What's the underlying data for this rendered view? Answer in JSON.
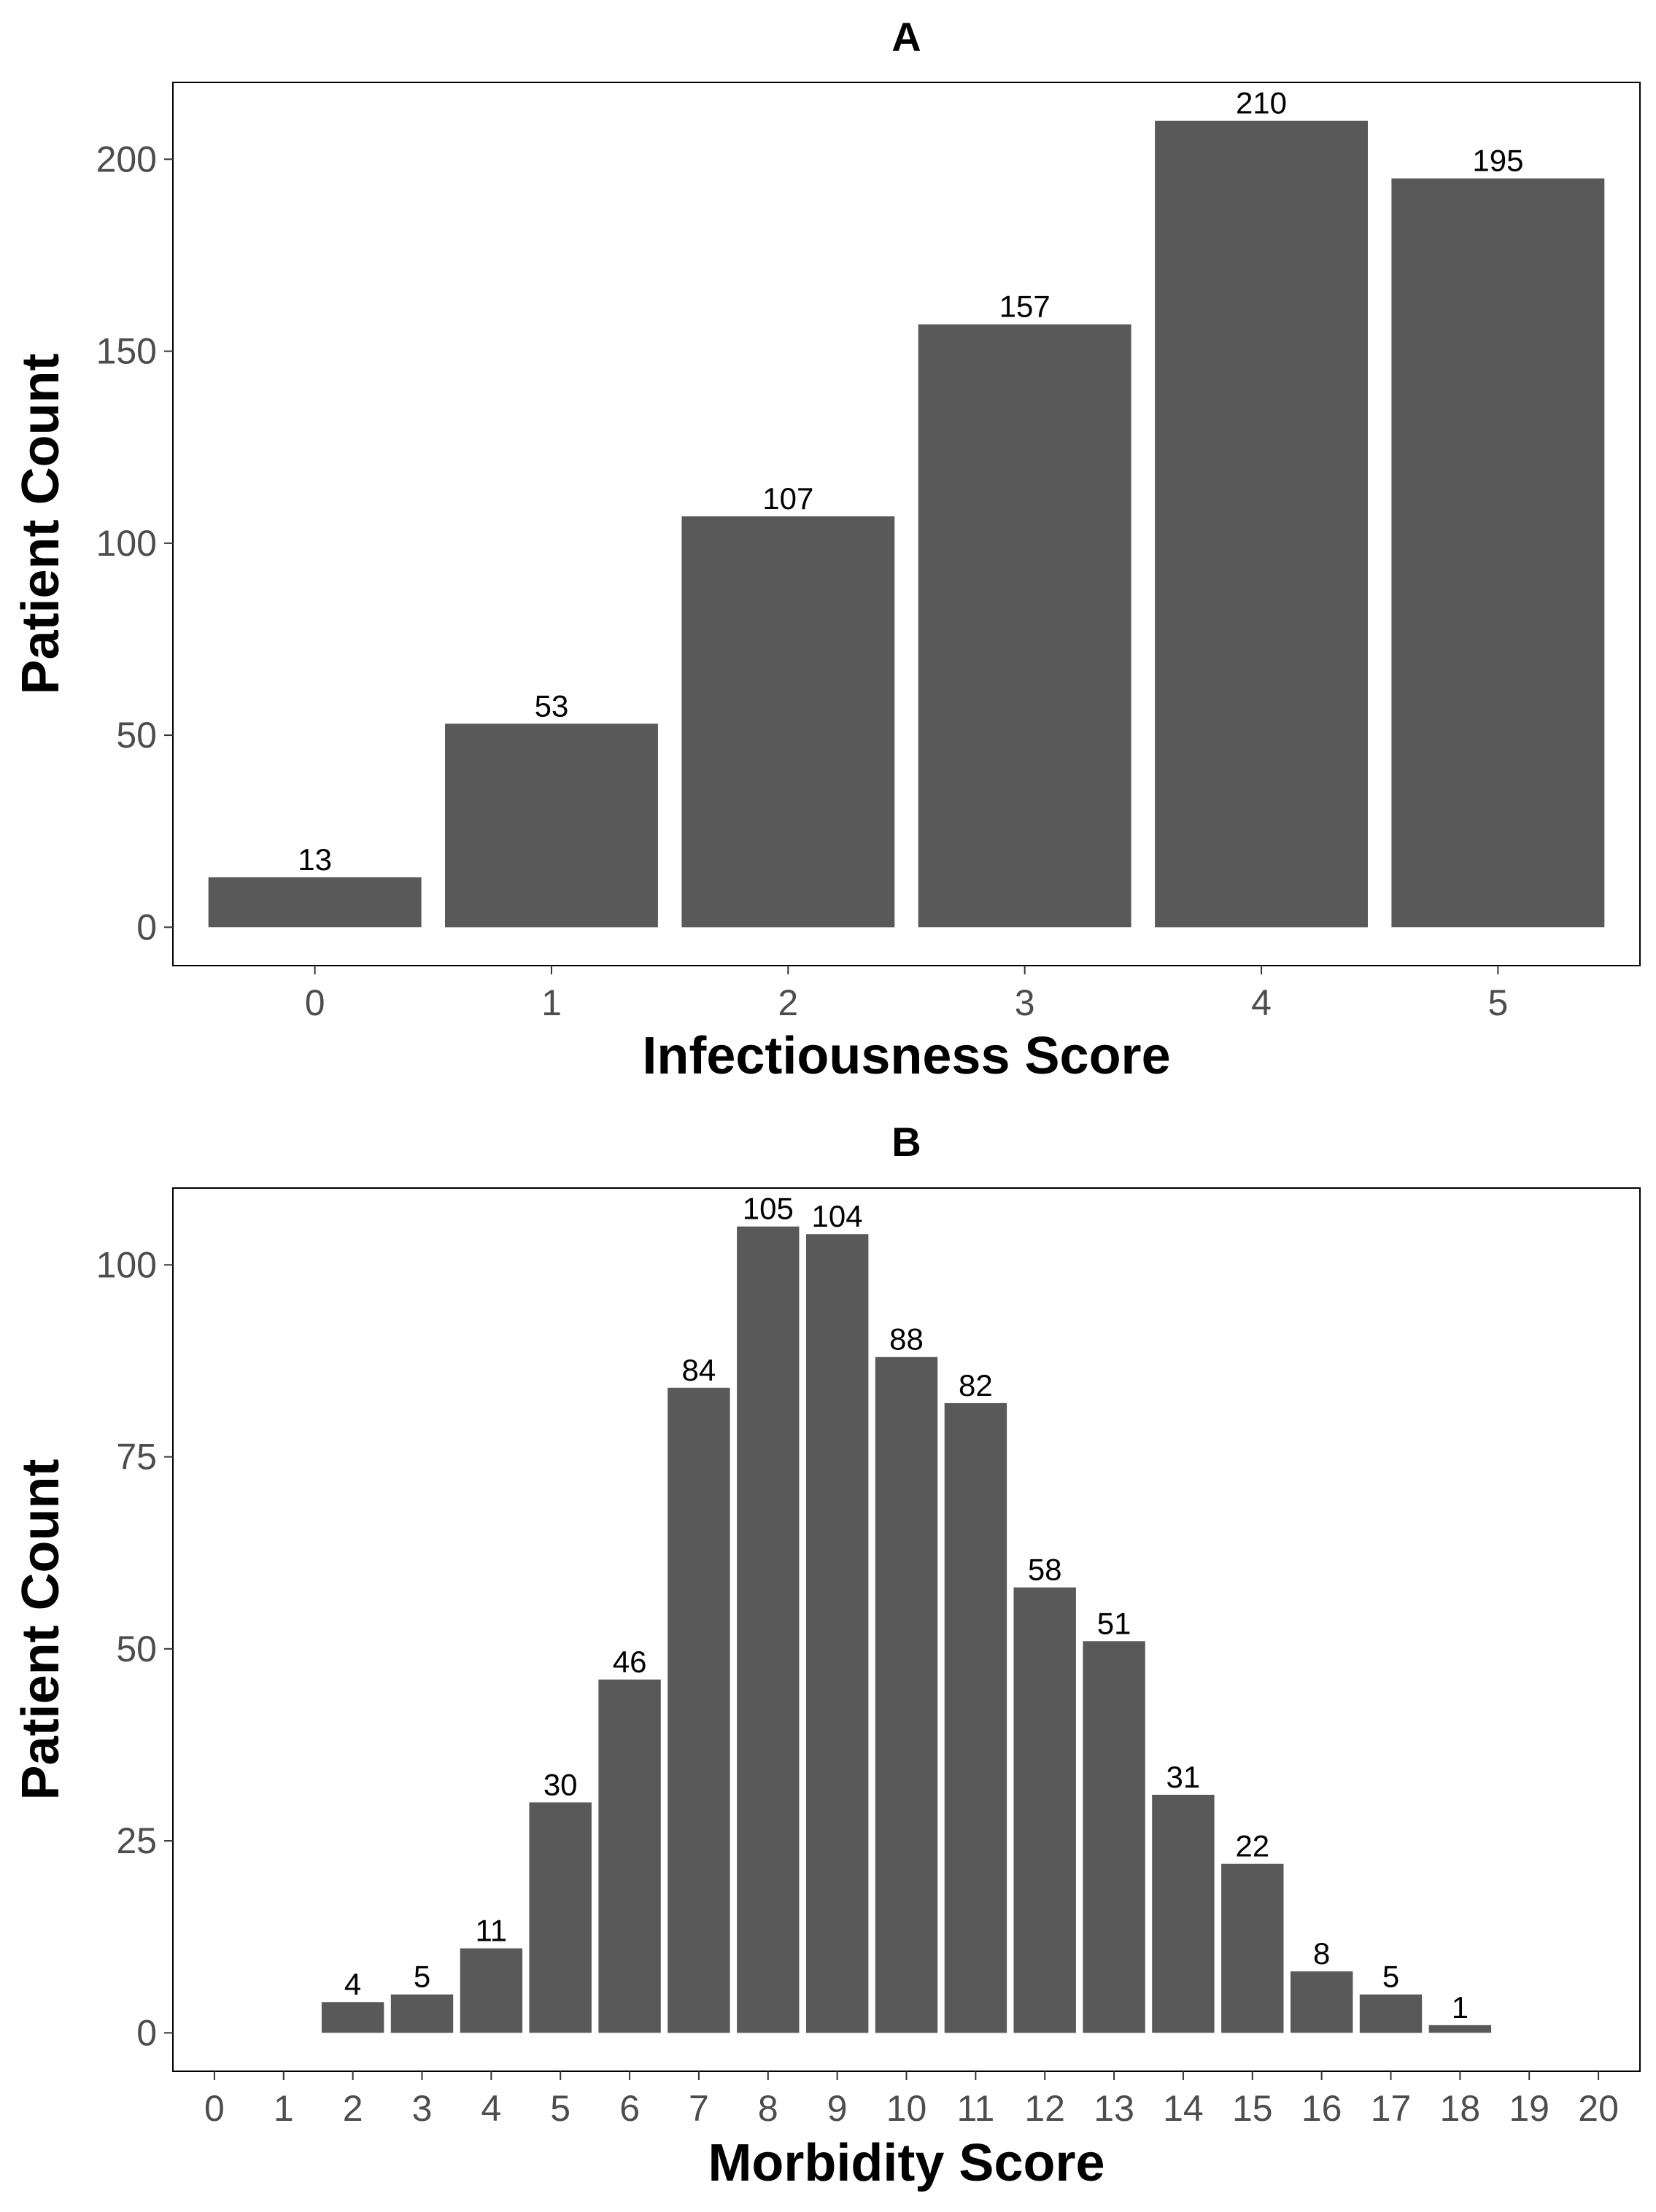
{
  "chart_data": [
    {
      "type": "bar",
      "title": "A",
      "xlabel": "Infectiousness Score",
      "ylabel": "Patient Count",
      "categories": [
        "0",
        "1",
        "2",
        "3",
        "4",
        "5"
      ],
      "values": [
        13,
        53,
        107,
        157,
        210,
        195
      ],
      "ylim": [
        -10,
        220
      ],
      "yticks": [
        0,
        50,
        100,
        150,
        200
      ],
      "bar_color": "#595959",
      "grid": false,
      "data_labels": true
    },
    {
      "type": "bar",
      "title": "B",
      "xlabel": "Morbidity Score",
      "ylabel": "Patient Count",
      "categories": [
        "0",
        "1",
        "2",
        "3",
        "4",
        "5",
        "6",
        "7",
        "8",
        "9",
        "10",
        "11",
        "12",
        "13",
        "14",
        "15",
        "16",
        "17",
        "18",
        "19",
        "20"
      ],
      "values": [
        null,
        null,
        4,
        5,
        11,
        30,
        46,
        84,
        105,
        104,
        88,
        82,
        58,
        51,
        31,
        22,
        8,
        5,
        1,
        null,
        null
      ],
      "ylim": [
        -5,
        110
      ],
      "yticks": [
        0,
        25,
        50,
        75,
        100
      ],
      "bar_color": "#595959",
      "grid": false,
      "data_labels": true
    }
  ]
}
